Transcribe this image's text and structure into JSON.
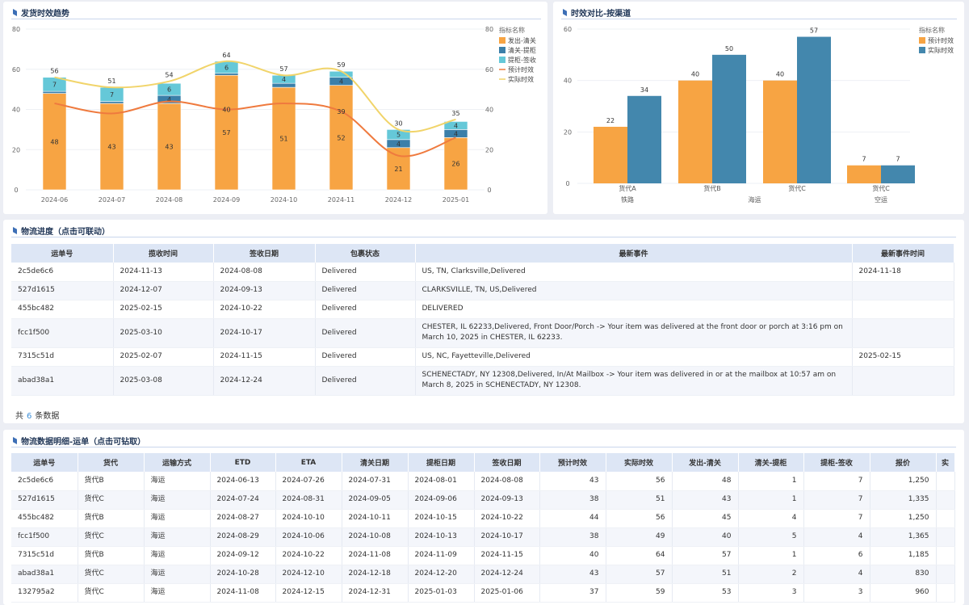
{
  "trend": {
    "title": "发货时效趋势",
    "legend_title": "指标名称",
    "left_ticks": [
      "80",
      "60",
      "40",
      "20",
      "0"
    ],
    "right_ticks": [
      "80",
      "60",
      "40",
      "20",
      "0"
    ]
  },
  "channel": {
    "title": "时效对比-按渠道",
    "legend_title": "指标名称",
    "ticks": [
      "60",
      "40",
      "20",
      "0"
    ]
  },
  "chart_data": [
    {
      "type": "bar",
      "title": "发货时效趋势",
      "stacked": true,
      "categories": [
        "2024-06",
        "2024-07",
        "2024-08",
        "2024-09",
        "2024-10",
        "2024-11",
        "2024-12",
        "2025-01"
      ],
      "ylim": [
        0,
        80
      ],
      "y2lim": [
        0,
        80
      ],
      "legend_placement": "top-right",
      "series": [
        {
          "name": "发出-清关",
          "type": "bar",
          "color": "#f7a443",
          "values": [
            48,
            43,
            43,
            57,
            51,
            52,
            21,
            26
          ]
        },
        {
          "name": "清关-提柜",
          "type": "bar",
          "color": "#3b7fa9",
          "values": [
            1,
            1,
            4,
            1,
            2,
            4,
            4,
            4
          ]
        },
        {
          "name": "提柜-签收",
          "type": "bar",
          "color": "#65c8d8",
          "values": [
            7,
            7,
            6,
            6,
            4,
            3,
            5,
            4
          ]
        },
        {
          "name": "预计时效",
          "type": "line",
          "color": "#ef7a3e",
          "values": [
            43,
            38,
            44,
            40,
            43,
            39,
            17,
            26
          ]
        },
        {
          "name": "实际时效",
          "type": "line",
          "color": "#f1d46a",
          "values": [
            56,
            51,
            54,
            64,
            57,
            59,
            30,
            35
          ]
        }
      ],
      "labels": {
        "bottom": [
          "48",
          "43",
          "43",
          "57",
          "51",
          "52",
          "21",
          "26"
        ],
        "middle": [
          "",
          "",
          "4",
          "",
          "",
          "4",
          "4",
          "4"
        ],
        "top": [
          "7",
          "7",
          "6",
          "6",
          "4",
          "",
          "5",
          "4"
        ],
        "total": [
          "56",
          "51",
          "54",
          "64",
          "57",
          "59",
          "30",
          "35"
        ],
        "line": [
          "",
          "",
          "",
          "40",
          "",
          "39",
          "",
          ""
        ]
      }
    },
    {
      "type": "bar",
      "title": "时效对比-按渠道",
      "categories": [
        "货代A",
        "货代B",
        "货代C",
        "货代C"
      ],
      "groups": [
        "铁路",
        "海运",
        "海运",
        "空运"
      ],
      "ylim": [
        0,
        60
      ],
      "legend_placement": "top-right",
      "series": [
        {
          "name": "预计时效",
          "color": "#f7a443",
          "values": [
            22,
            40,
            40,
            7
          ]
        },
        {
          "name": "实际时效",
          "color": "#4387ad",
          "values": [
            34,
            50,
            57,
            7
          ]
        }
      ]
    }
  ],
  "progress": {
    "title": "物流进度（点击可联动）",
    "columns": [
      "运单号",
      "揽收时间",
      "签收日期",
      "包裹状态",
      "最新事件",
      "最新事件时间"
    ],
    "rows": [
      [
        "2c5de6c6",
        "2024-11-13",
        "2024-08-08",
        "Delivered",
        "US, TN, Clarksville,Delivered",
        "2024-11-18"
      ],
      [
        "527d1615",
        "2024-12-07",
        "2024-09-13",
        "Delivered",
        "CLARKSVILLE, TN, US,Delivered",
        ""
      ],
      [
        "455bc482",
        "2025-02-15",
        "2024-10-22",
        "Delivered",
        "DELIVERED",
        ""
      ],
      [
        "fcc1f500",
        "2025-03-10",
        "2024-10-17",
        "Delivered",
        "CHESTER, IL 62233,Delivered, Front Door/Porch -> Your item was delivered at the front door or porch at 3:16 pm on March 10, 2025 in CHESTER, IL 62233.",
        ""
      ],
      [
        "7315c51d",
        "2025-02-07",
        "2024-11-15",
        "Delivered",
        "US, NC, Fayetteville,Delivered",
        "2025-02-15"
      ],
      [
        "abad38a1",
        "2025-03-08",
        "2024-12-24",
        "Delivered",
        "SCHENECTADY, NY 12308,Delivered, In/At Mailbox -> Your item was delivered in or at the mailbox at 10:57 am on March 8, 2025 in SCHENECTADY, NY 12308.",
        ""
      ]
    ],
    "footer_prefix": "共",
    "footer_count": "6",
    "footer_suffix": "条数据"
  },
  "detail": {
    "title": "物流数据明细-运单（点击可钻取）",
    "columns": [
      "运单号",
      "货代",
      "运输方式",
      "ETD",
      "ETA",
      "清关日期",
      "提柜日期",
      "签收日期",
      "预计时效",
      "实际时效",
      "发出-清关",
      "清关-提柜",
      "提柜-签收",
      "报价",
      "实"
    ],
    "rows": [
      [
        "2c5de6c6",
        "货代B",
        "海运",
        "2024-06-13",
        "2024-07-26",
        "2024-07-31",
        "2024-08-01",
        "2024-08-08",
        "43",
        "56",
        "48",
        "1",
        "7",
        "1,250",
        ""
      ],
      [
        "527d1615",
        "货代C",
        "海运",
        "2024-07-24",
        "2024-08-31",
        "2024-09-05",
        "2024-09-06",
        "2024-09-13",
        "38",
        "51",
        "43",
        "1",
        "7",
        "1,335",
        ""
      ],
      [
        "455bc482",
        "货代B",
        "海运",
        "2024-08-27",
        "2024-10-10",
        "2024-10-11",
        "2024-10-15",
        "2024-10-22",
        "44",
        "56",
        "45",
        "4",
        "7",
        "1,250",
        ""
      ],
      [
        "fcc1f500",
        "货代C",
        "海运",
        "2024-08-29",
        "2024-10-06",
        "2024-10-08",
        "2024-10-13",
        "2024-10-17",
        "38",
        "49",
        "40",
        "5",
        "4",
        "1,365",
        ""
      ],
      [
        "7315c51d",
        "货代B",
        "海运",
        "2024-09-12",
        "2024-10-22",
        "2024-11-08",
        "2024-11-09",
        "2024-11-15",
        "40",
        "64",
        "57",
        "1",
        "6",
        "1,185",
        ""
      ],
      [
        "abad38a1",
        "货代C",
        "海运",
        "2024-10-28",
        "2024-12-10",
        "2024-12-18",
        "2024-12-20",
        "2024-12-24",
        "43",
        "57",
        "51",
        "2",
        "4",
        "830",
        ""
      ],
      [
        "132795a2",
        "货代C",
        "海运",
        "2024-11-08",
        "2024-12-15",
        "2024-12-31",
        "2025-01-03",
        "2025-01-06",
        "37",
        "59",
        "53",
        "3",
        "3",
        "960",
        ""
      ]
    ]
  }
}
